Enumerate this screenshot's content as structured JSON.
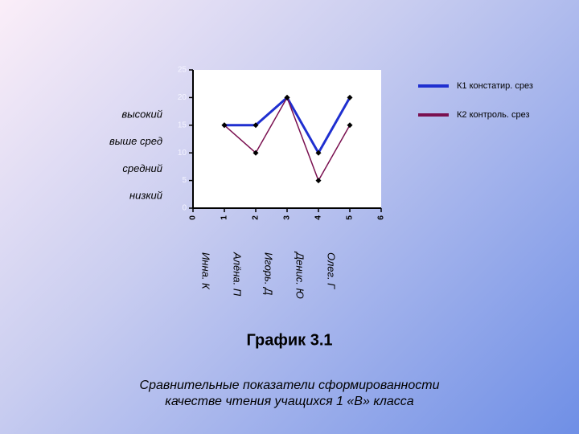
{
  "chart_data": {
    "type": "line",
    "x": [
      1,
      2,
      3,
      4,
      5
    ],
    "xlim": [
      0,
      6
    ],
    "xticks": [
      0,
      1,
      2,
      3,
      4,
      5,
      6
    ],
    "ylim": [
      0,
      25
    ],
    "yticks": [
      0,
      5,
      10,
      15,
      20,
      25
    ],
    "series": [
      {
        "name": "К1 констатир. срез",
        "color": "#1f2fd0",
        "values": [
          15,
          15,
          20,
          10,
          20
        ]
      },
      {
        "name": "К2 контроль. срез",
        "color": "#7a1050",
        "values": [
          15,
          10,
          20,
          5,
          15
        ]
      }
    ],
    "legend": "right",
    "levels": [
      "высокий",
      "выше сред",
      "средний",
      "низкий"
    ],
    "names": [
      "Инна. К",
      "Алёна. П",
      "Игорь. Д",
      "Денис. Ю",
      "Олег. Г"
    ],
    "title": "График 3.1",
    "caption": [
      "Сравнительные показатели сформированности",
      "качестве чтения  учащихся 1 «В» класса"
    ]
  }
}
